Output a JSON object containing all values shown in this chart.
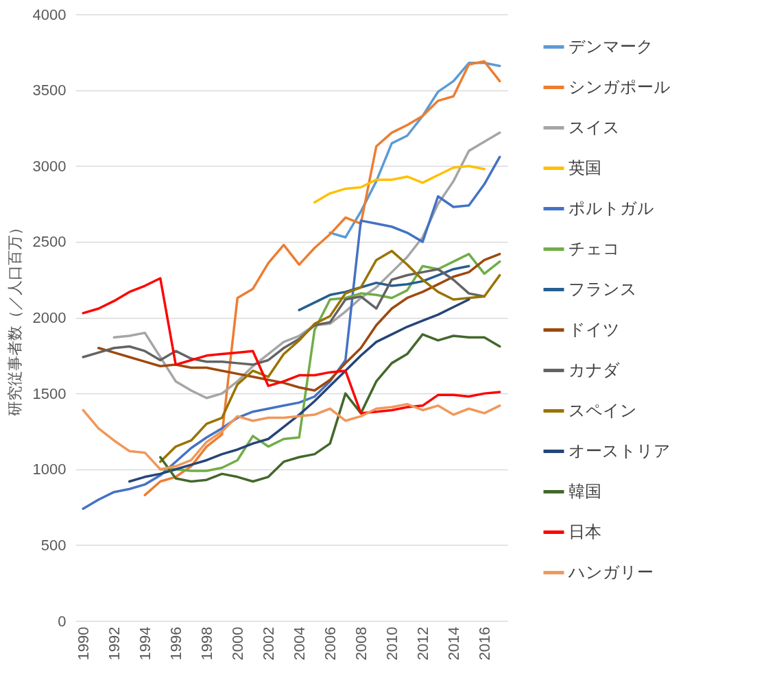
{
  "chart_data": {
    "type": "line",
    "ylabel": "研究従事者数（／人口百万）",
    "categories": [
      "1990",
      null,
      "1992",
      null,
      "1994",
      null,
      "1996",
      null,
      "1998",
      null,
      "2000",
      null,
      "2002",
      null,
      "2004",
      null,
      "2006",
      null,
      "2008",
      null,
      "2010",
      null,
      "2012",
      null,
      "2014",
      null,
      "2016",
      null
    ],
    "ylim": [
      0,
      4000
    ],
    "yticks": [
      0,
      500,
      1000,
      1500,
      2000,
      2500,
      3000,
      3500,
      4000
    ],
    "grid": "y",
    "legend": "right",
    "series": [
      {
        "name": "デンマーク",
        "color": "#5b9bd5",
        "values": [
          null,
          null,
          null,
          null,
          null,
          null,
          null,
          null,
          null,
          null,
          null,
          null,
          null,
          null,
          null,
          null,
          2560,
          2530,
          2700,
          2900,
          3150,
          3200,
          3330,
          3490,
          3560,
          3680,
          3680,
          3660
        ]
      },
      {
        "name": "シンガポール",
        "color": "#ed7d31",
        "values": [
          null,
          null,
          null,
          null,
          830,
          920,
          950,
          1020,
          1150,
          1230,
          2130,
          2190,
          2360,
          2480,
          2350,
          2460,
          2550,
          2660,
          2620,
          3130,
          3220,
          3270,
          3330,
          3430,
          3460,
          3670,
          3690,
          3560
        ]
      },
      {
        "name": "スイス",
        "color": "#a5a5a5",
        "values": [
          null,
          null,
          1870,
          1880,
          1900,
          1740,
          1580,
          1520,
          1470,
          1500,
          1580,
          1680,
          1760,
          1840,
          1880,
          1950,
          1960,
          2040,
          2130,
          2200,
          2300,
          2400,
          2530,
          2750,
          2900,
          3100,
          3160,
          3220
        ]
      },
      {
        "name": "英国",
        "color": "#ffc000",
        "values": [
          null,
          null,
          null,
          null,
          null,
          null,
          null,
          null,
          null,
          null,
          null,
          null,
          null,
          null,
          null,
          2760,
          2820,
          2850,
          2860,
          2910,
          2910,
          2930,
          2890,
          2940,
          2990,
          3000,
          2980,
          null
        ]
      },
      {
        "name": "ポルトガル",
        "color": "#4472c4",
        "values": [
          740,
          800,
          850,
          870,
          900,
          960,
          1050,
          1140,
          1210,
          1270,
          1340,
          1380,
          1400,
          1420,
          1440,
          1480,
          1580,
          1720,
          2640,
          2620,
          2600,
          2560,
          2500,
          2800,
          2730,
          2740,
          2880,
          3060
        ]
      },
      {
        "name": "チェコ",
        "color": "#70ad47",
        "values": [
          null,
          null,
          null,
          null,
          null,
          1000,
          1000,
          990,
          990,
          1010,
          1060,
          1220,
          1150,
          1200,
          1210,
          1920,
          2120,
          2130,
          2160,
          2150,
          2130,
          2180,
          2340,
          2320,
          2370,
          2420,
          2290,
          2370
        ]
      },
      {
        "name": "フランス",
        "color": "#255e91",
        "values": [
          null,
          null,
          null,
          null,
          null,
          null,
          null,
          null,
          null,
          null,
          null,
          null,
          null,
          null,
          2050,
          2100,
          2150,
          2170,
          2200,
          2230,
          2210,
          2220,
          2240,
          2280,
          2320,
          2340,
          null,
          null
        ]
      },
      {
        "name": "ドイツ",
        "color": "#9e480e",
        "values": [
          null,
          1800,
          1770,
          1740,
          1710,
          1680,
          1690,
          1670,
          1670,
          1650,
          1630,
          1610,
          1590,
          1570,
          1540,
          1520,
          1590,
          1700,
          1800,
          1950,
          2060,
          2130,
          2170,
          2220,
          2270,
          2300,
          2380,
          2420
        ]
      },
      {
        "name": "カナダ",
        "color": "#636363",
        "values": [
          1740,
          1770,
          1800,
          1810,
          1780,
          1720,
          1780,
          1730,
          1710,
          1710,
          1700,
          1690,
          1720,
          1800,
          1860,
          1950,
          1970,
          2120,
          2140,
          2060,
          2250,
          2280,
          2300,
          2320,
          2250,
          2160,
          2140,
          null
        ]
      },
      {
        "name": "スペイン",
        "color": "#997300",
        "values": [
          null,
          null,
          null,
          null,
          null,
          1050,
          1150,
          1190,
          1300,
          1340,
          1560,
          1650,
          1610,
          1760,
          1850,
          1960,
          2010,
          2160,
          2200,
          2380,
          2440,
          2350,
          2250,
          2170,
          2120,
          2130,
          2140,
          2280
        ]
      },
      {
        "name": "オーストリア",
        "color": "#264478",
        "values": [
          null,
          null,
          null,
          920,
          950,
          970,
          1000,
          1030,
          1060,
          1100,
          1130,
          1170,
          1200,
          1280,
          1360,
          1450,
          1550,
          1650,
          1750,
          1840,
          1890,
          1940,
          1980,
          2020,
          2070,
          2120,
          null,
          null
        ]
      },
      {
        "name": "韓国",
        "color": "#43682b",
        "values": [
          null,
          null,
          null,
          null,
          null,
          1080,
          940,
          920,
          930,
          970,
          950,
          920,
          950,
          1050,
          1080,
          1100,
          1170,
          1500,
          1370,
          1580,
          1700,
          1760,
          1890,
          1850,
          1880,
          1870,
          1870,
          1810
        ]
      },
      {
        "name": "日本",
        "color": "#ff0000",
        "values": [
          2030,
          2060,
          2110,
          2170,
          2210,
          2260,
          1690,
          1720,
          1750,
          1760,
          1770,
          1780,
          1550,
          1580,
          1620,
          1620,
          1640,
          1650,
          1370,
          1380,
          1390,
          1410,
          1420,
          1490,
          1490,
          1480,
          1500,
          1510
        ]
      },
      {
        "name": "ハンガリー",
        "color": "#f1975a",
        "values": [
          1390,
          1270,
          1190,
          1120,
          1110,
          1000,
          1020,
          1060,
          1180,
          1250,
          1350,
          1320,
          1340,
          1340,
          1350,
          1360,
          1400,
          1320,
          1350,
          1400,
          1410,
          1430,
          1390,
          1420,
          1360,
          1400,
          1370,
          1420
        ]
      }
    ]
  }
}
